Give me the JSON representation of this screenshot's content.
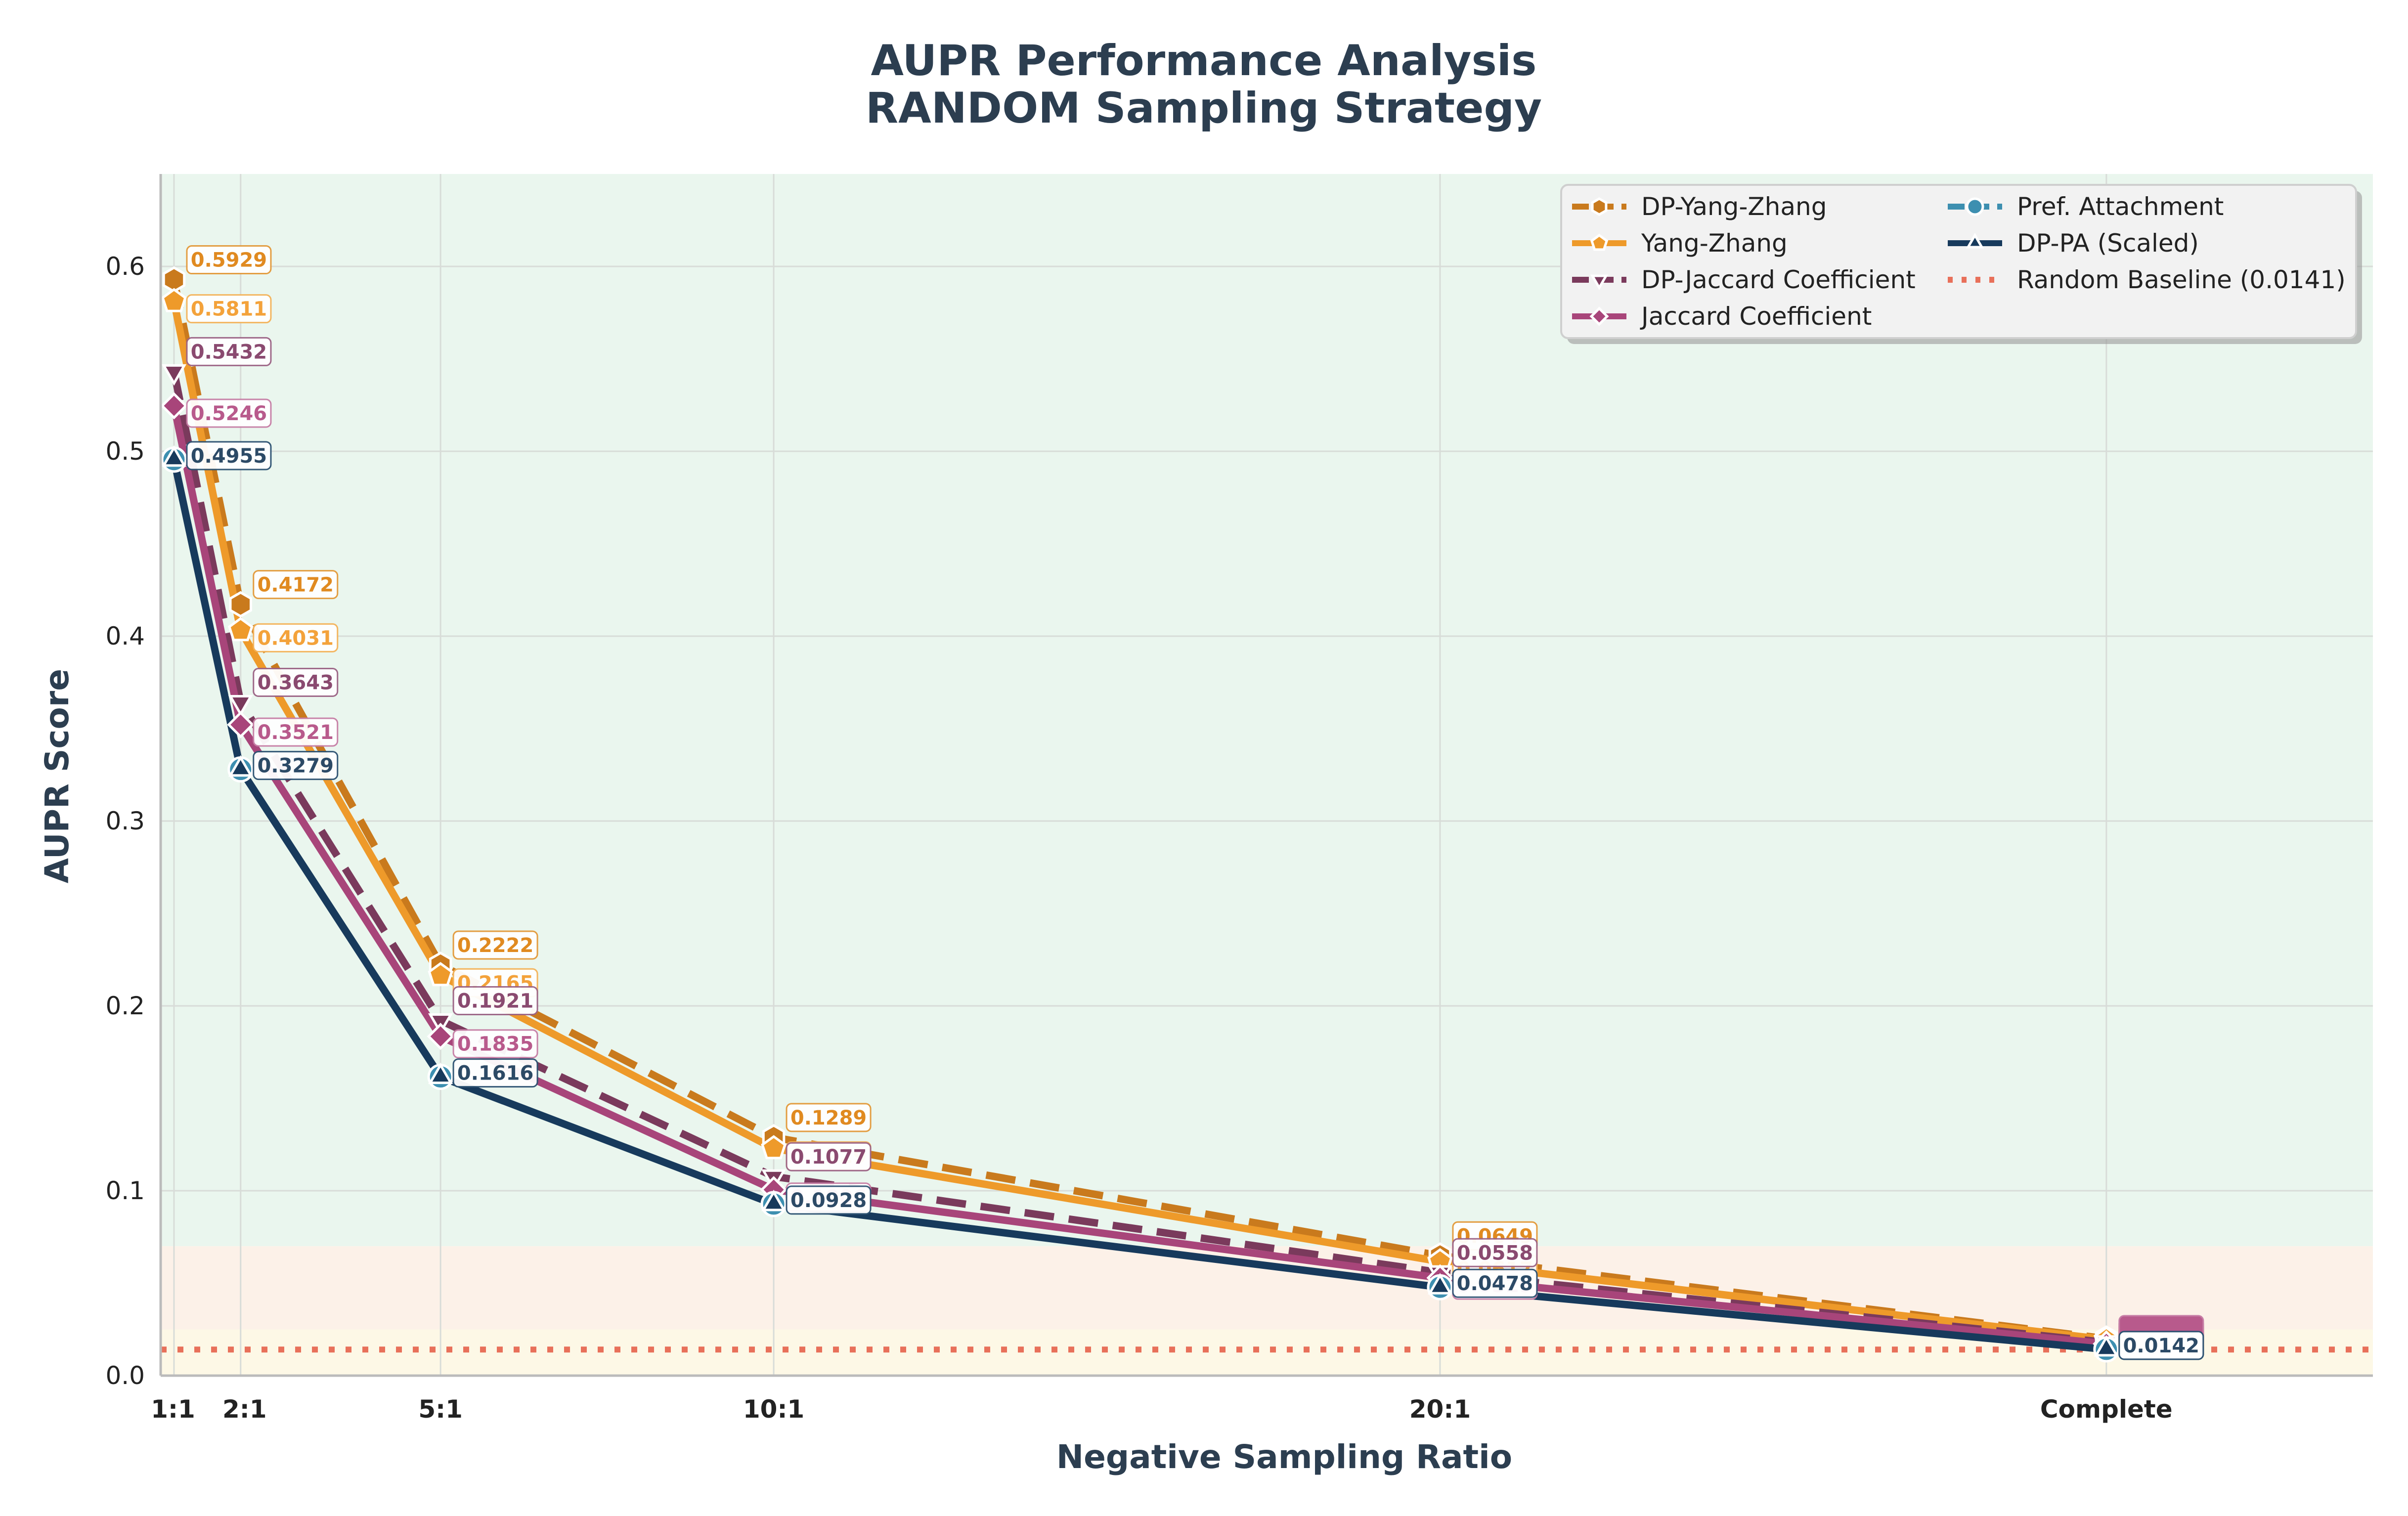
{
  "chart_data": {
    "type": "line",
    "title_lines": [
      "AUPR Performance Analysis",
      "RANDOM Sampling Strategy"
    ],
    "xlabel": "Negative Sampling Ratio",
    "ylabel": "AUPR Score",
    "categories": [
      "1:1",
      "2:1",
      "5:1",
      "10:1",
      "20:1",
      "Complete"
    ],
    "x": [
      1,
      2,
      5,
      10,
      20,
      30
    ],
    "xlim": [
      0.8,
      34
    ],
    "ylim": [
      0,
      0.65
    ],
    "yticks": [
      0.0,
      0.1,
      0.2,
      0.3,
      0.4,
      0.5,
      0.6
    ],
    "ytick_labels": [
      "0.0",
      "0.1",
      "0.2",
      "0.3",
      "0.4",
      "0.5",
      "0.6"
    ],
    "grid": true,
    "legend_position": "top-right",
    "background_bands": [
      {
        "from": 0.07,
        "to": 0.65,
        "color": "#eaf6ee"
      },
      {
        "from": 0.025,
        "to": 0.07,
        "color": "#fcf1e8"
      },
      {
        "from": 0.0,
        "to": 0.025,
        "color": "#fdf8e6"
      }
    ],
    "series": [
      {
        "name": "DP-Yang-Zhang",
        "color": "#c97a1d",
        "dash": "dashed",
        "marker": "hexagon",
        "values": [
          0.5929,
          0.4172,
          0.2222,
          0.1289,
          0.0649,
          0.02
        ],
        "labels": [
          "0.5929",
          "0.4172",
          "0.2222",
          "0.1289",
          "0.0649",
          ""
        ]
      },
      {
        "name": "Yang-Zhang",
        "color": "#ee9a2a",
        "dash": "solid",
        "marker": "pentagon",
        "values": [
          0.5811,
          0.4031,
          0.2165,
          0.1229,
          0.0617,
          0.0195
        ],
        "labels": [
          "0.5811",
          "0.4031",
          "0.2165",
          "0.1229",
          "0.0617",
          ""
        ]
      },
      {
        "name": "DP-Jaccard Coefficient",
        "color": "#7a3a5c",
        "dash": "dashed",
        "marker": "triangle-down",
        "values": [
          0.5432,
          0.3643,
          0.1921,
          0.1077,
          0.0558,
          0.018
        ],
        "labels": [
          "0.5432",
          "0.3643",
          "0.1921",
          "0.1077",
          "0.0558",
          ""
        ]
      },
      {
        "name": "Jaccard Coefficient",
        "color": "#a8457a",
        "dash": "solid",
        "marker": "diamond",
        "values": [
          0.5246,
          0.3521,
          0.1835,
          0.1006,
          0.0529,
          0.0172
        ],
        "labels": [
          "0.5246",
          "0.3521",
          "0.1835",
          "0.1006",
          "0.0529",
          ""
        ]
      },
      {
        "name": "Pref. Attachment",
        "color": "#3d8fb0",
        "dash": "dashdot",
        "marker": "circle",
        "values": [
          0.4955,
          0.3279,
          0.1616,
          0.0928,
          0.0478,
          0.0142
        ],
        "labels": [
          "",
          "",
          "",
          "",
          "",
          ""
        ]
      },
      {
        "name": "DP-PA (Scaled)",
        "color": "#173a5c",
        "dash": "solid",
        "marker": "triangle-up",
        "values": [
          0.4955,
          0.3279,
          0.1616,
          0.0928,
          0.0478,
          0.0142
        ],
        "labels": [
          "0.4955",
          "0.3279",
          "0.1616",
          "0.0928",
          "0.0478",
          "0.0142"
        ]
      }
    ],
    "baseline": {
      "name": "Random Baseline (0.0141)",
      "value": 0.0141,
      "color": "#e8705a"
    }
  }
}
